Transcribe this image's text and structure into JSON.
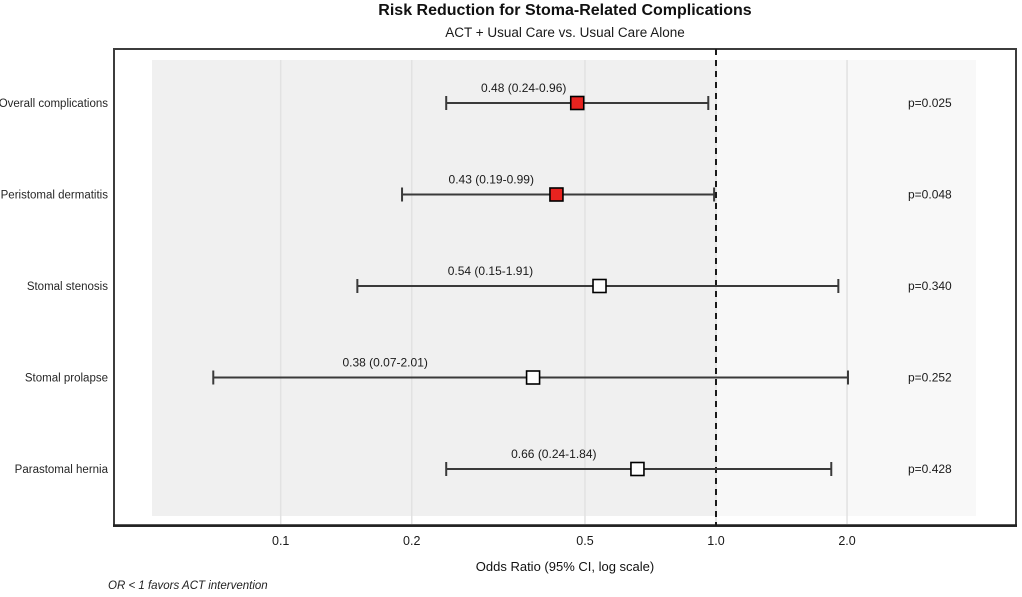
{
  "title": "Risk Reduction for Stoma-Related Complications",
  "subtitle": "ACT + Usual Care vs. Usual Care Alone",
  "chart_data": {
    "type": "forest",
    "title": "Risk Reduction for Stoma-Related Complications",
    "subtitle": "ACT + Usual Care vs. Usual Care Alone",
    "xlabel": "Odds Ratio (95% CI, log scale)",
    "footnote": "OR < 1 favors ACT intervention",
    "x_scale": "log",
    "xlim": [
      0.05,
      4.0
    ],
    "x_ticks": [
      0.1,
      0.2,
      0.5,
      1.0,
      2.0
    ],
    "x_tick_labels": [
      "0.1",
      "0.2",
      "0.5",
      "1.0",
      "2.0"
    ],
    "reference_line": 1.0,
    "grid": true,
    "legend": "none",
    "rows": [
      {
        "label": "Overall complications",
        "or": 0.48,
        "ci_low": 0.24,
        "ci_high": 0.96,
        "estimate_label": "0.48 (0.24-0.96)",
        "p_label": "p=0.025",
        "significant": true
      },
      {
        "label": "Peristomal dermatitis",
        "or": 0.43,
        "ci_low": 0.19,
        "ci_high": 0.99,
        "estimate_label": "0.43 (0.19-0.99)",
        "p_label": "p=0.048",
        "significant": true
      },
      {
        "label": "Stomal stenosis",
        "or": 0.54,
        "ci_low": 0.15,
        "ci_high": 1.91,
        "estimate_label": "0.54 (0.15-1.91)",
        "p_label": "p=0.340",
        "significant": false
      },
      {
        "label": "Stomal prolapse",
        "or": 0.38,
        "ci_low": 0.07,
        "ci_high": 2.01,
        "estimate_label": "0.38 (0.07-2.01)",
        "p_label": "p=0.252",
        "significant": false
      },
      {
        "label": "Parastomal hernia",
        "or": 0.66,
        "ci_low": 0.24,
        "ci_high": 1.84,
        "estimate_label": "0.66 (0.24-1.84)",
        "p_label": "p=0.428",
        "significant": false
      }
    ],
    "colors": {
      "significant_marker": "#e8231f",
      "nonsignificant_marker": "#ffffff",
      "marker_border": "#000000",
      "ci_line": "#3a3a3a",
      "shaded_panel": "#f0f0f0",
      "panel_right": "#f8f8f8",
      "gridline": "#e2e2e2",
      "frame_border": "#3c3c3c",
      "reference_line_color": "#1a1a1a",
      "text": "#1a1a1a"
    }
  }
}
